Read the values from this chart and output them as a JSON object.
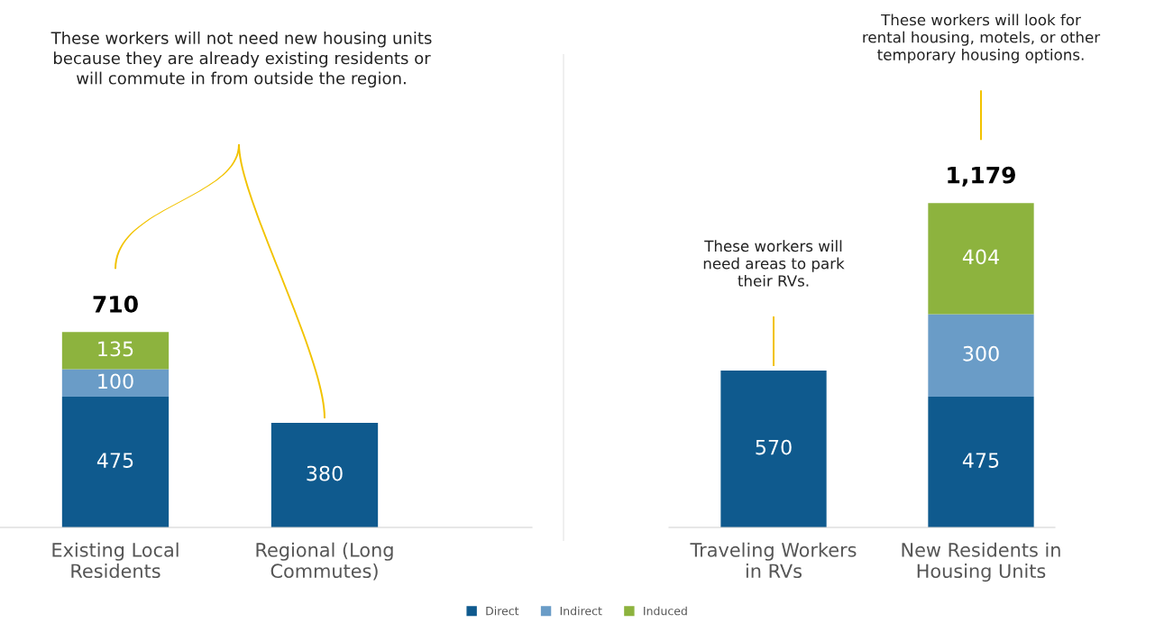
{
  "chart_data": [
    {
      "type": "bar",
      "stacked": true,
      "data_labels": true,
      "legend": "bottom",
      "grid": false,
      "categories": [
        "Existing Local\nResidents",
        "Regional (Long\nCommutes)"
      ],
      "series": [
        {
          "name": "Direct",
          "color": "#0f5a8e",
          "values": [
            475,
            380
          ]
        },
        {
          "name": "Indirect",
          "color": "#6a9cc7",
          "values": [
            100,
            null
          ]
        },
        {
          "name": "Induced",
          "color": "#8db33e",
          "values": [
            135,
            null
          ]
        }
      ],
      "totals": [
        "710",
        null
      ],
      "annotations": [
        "These workers will not need new housing units\nbecause they are already existing residents or\nwill commute in from outside the region."
      ]
    },
    {
      "type": "bar",
      "stacked": true,
      "data_labels": true,
      "legend": "bottom",
      "grid": false,
      "categories": [
        "Traveling Workers\nin RVs",
        "New Residents in\nHousing Units"
      ],
      "series": [
        {
          "name": "Direct",
          "color": "#0f5a8e",
          "values": [
            570,
            475
          ]
        },
        {
          "name": "Indirect",
          "color": "#6a9cc7",
          "values": [
            null,
            300
          ]
        },
        {
          "name": "Induced",
          "color": "#8db33e",
          "values": [
            null,
            404
          ]
        }
      ],
      "totals": [
        null,
        "1,179"
      ],
      "annotations": [
        "These workers will\nneed areas to park\ntheir RVs.",
        "These workers will look for\nrental housing, motels, or other\ntemporary housing options."
      ]
    }
  ]
}
